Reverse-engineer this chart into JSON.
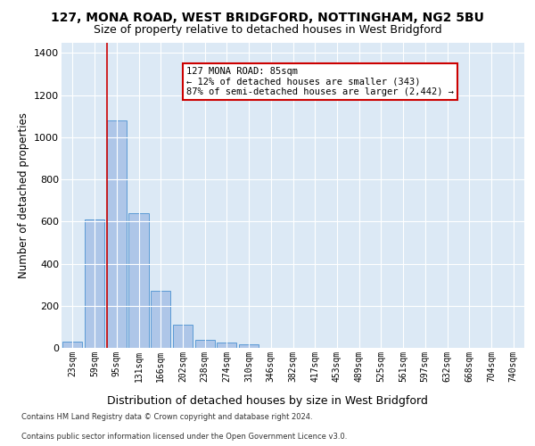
{
  "title1": "127, MONA ROAD, WEST BRIDGFORD, NOTTINGHAM, NG2 5BU",
  "title2": "Size of property relative to detached houses in West Bridgford",
  "xlabel": "Distribution of detached houses by size in West Bridgford",
  "ylabel": "Number of detached properties",
  "categories": [
    "23sqm",
    "59sqm",
    "95sqm",
    "131sqm",
    "166sqm",
    "202sqm",
    "238sqm",
    "274sqm",
    "310sqm",
    "346sqm",
    "382sqm",
    "417sqm",
    "453sqm",
    "489sqm",
    "525sqm",
    "561sqm",
    "597sqm",
    "632sqm",
    "668sqm",
    "704sqm",
    "740sqm"
  ],
  "values": [
    30,
    610,
    1080,
    640,
    270,
    110,
    40,
    25,
    15,
    0,
    0,
    0,
    0,
    0,
    0,
    0,
    0,
    0,
    0,
    0,
    0
  ],
  "bar_color": "#aec6e8",
  "bar_edge_color": "#5b9bd5",
  "vline_x": 1.57,
  "vline_color": "#cc0000",
  "annotation_text": "127 MONA ROAD: 85sqm\n← 12% of detached houses are smaller (343)\n87% of semi-detached houses are larger (2,442) →",
  "annotation_box_color": "#ffffff",
  "annotation_box_edge": "#cc0000",
  "ylim": [
    0,
    1450
  ],
  "yticks": [
    0,
    200,
    400,
    600,
    800,
    1000,
    1200,
    1400
  ],
  "footer1": "Contains HM Land Registry data © Crown copyright and database right 2024.",
  "footer2": "Contains public sector information licensed under the Open Government Licence v3.0.",
  "bg_color": "#dce9f5",
  "fig_bg": "#ffffff",
  "title1_fontsize": 10,
  "title2_fontsize": 9,
  "xlabel_fontsize": 9,
  "ylabel_fontsize": 8.5,
  "annot_fontsize": 7.5
}
